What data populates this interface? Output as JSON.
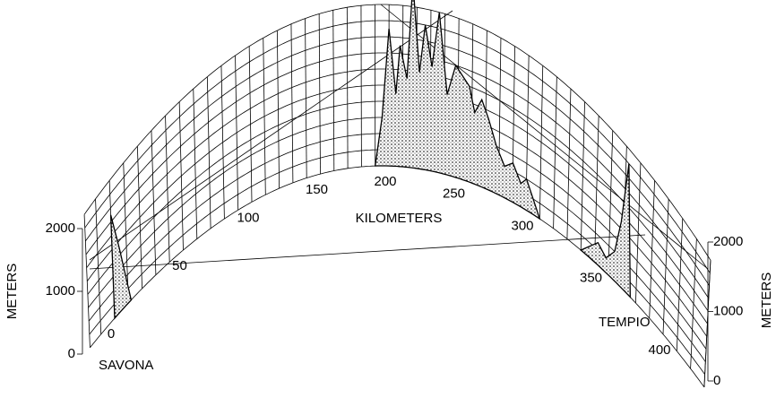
{
  "axis": {
    "title": "KILOMETERS",
    "ticks": [
      "0",
      "50",
      "100",
      "150",
      "200",
      "250",
      "300",
      "350",
      "400"
    ]
  },
  "left_axis": {
    "title": "METERS",
    "ticks": [
      "0",
      "1000",
      "2000"
    ]
  },
  "right_axis": {
    "title": "METERS",
    "ticks": [
      "0",
      "1000",
      "2000"
    ]
  },
  "places": {
    "start": "SAVONA",
    "end": "TEMPIO"
  },
  "profiles": [
    {
      "km": [
        0,
        0,
        5,
        12
      ],
      "meters": [
        0,
        1500,
        900,
        0
      ]
    },
    {
      "km": [
        190,
        195,
        200,
        205,
        208,
        213,
        217,
        222,
        226,
        231,
        236,
        242,
        248,
        253,
        258,
        262,
        267,
        272,
        278,
        284,
        290,
        296,
        300,
        305,
        310
      ],
      "meters": [
        0,
        600,
        1700,
        900,
        1500,
        1100,
        2300,
        1200,
        1800,
        1300,
        2000,
        1000,
        1400,
        1300,
        1200,
        900,
        1100,
        900,
        600,
        400,
        500,
        300,
        400,
        200,
        0
      ]
    },
    {
      "km": [
        340,
        352,
        358,
        364,
        368,
        372,
        376
      ],
      "meters": [
        0,
        300,
        200,
        400,
        900,
        1800,
        0
      ]
    }
  ]
}
